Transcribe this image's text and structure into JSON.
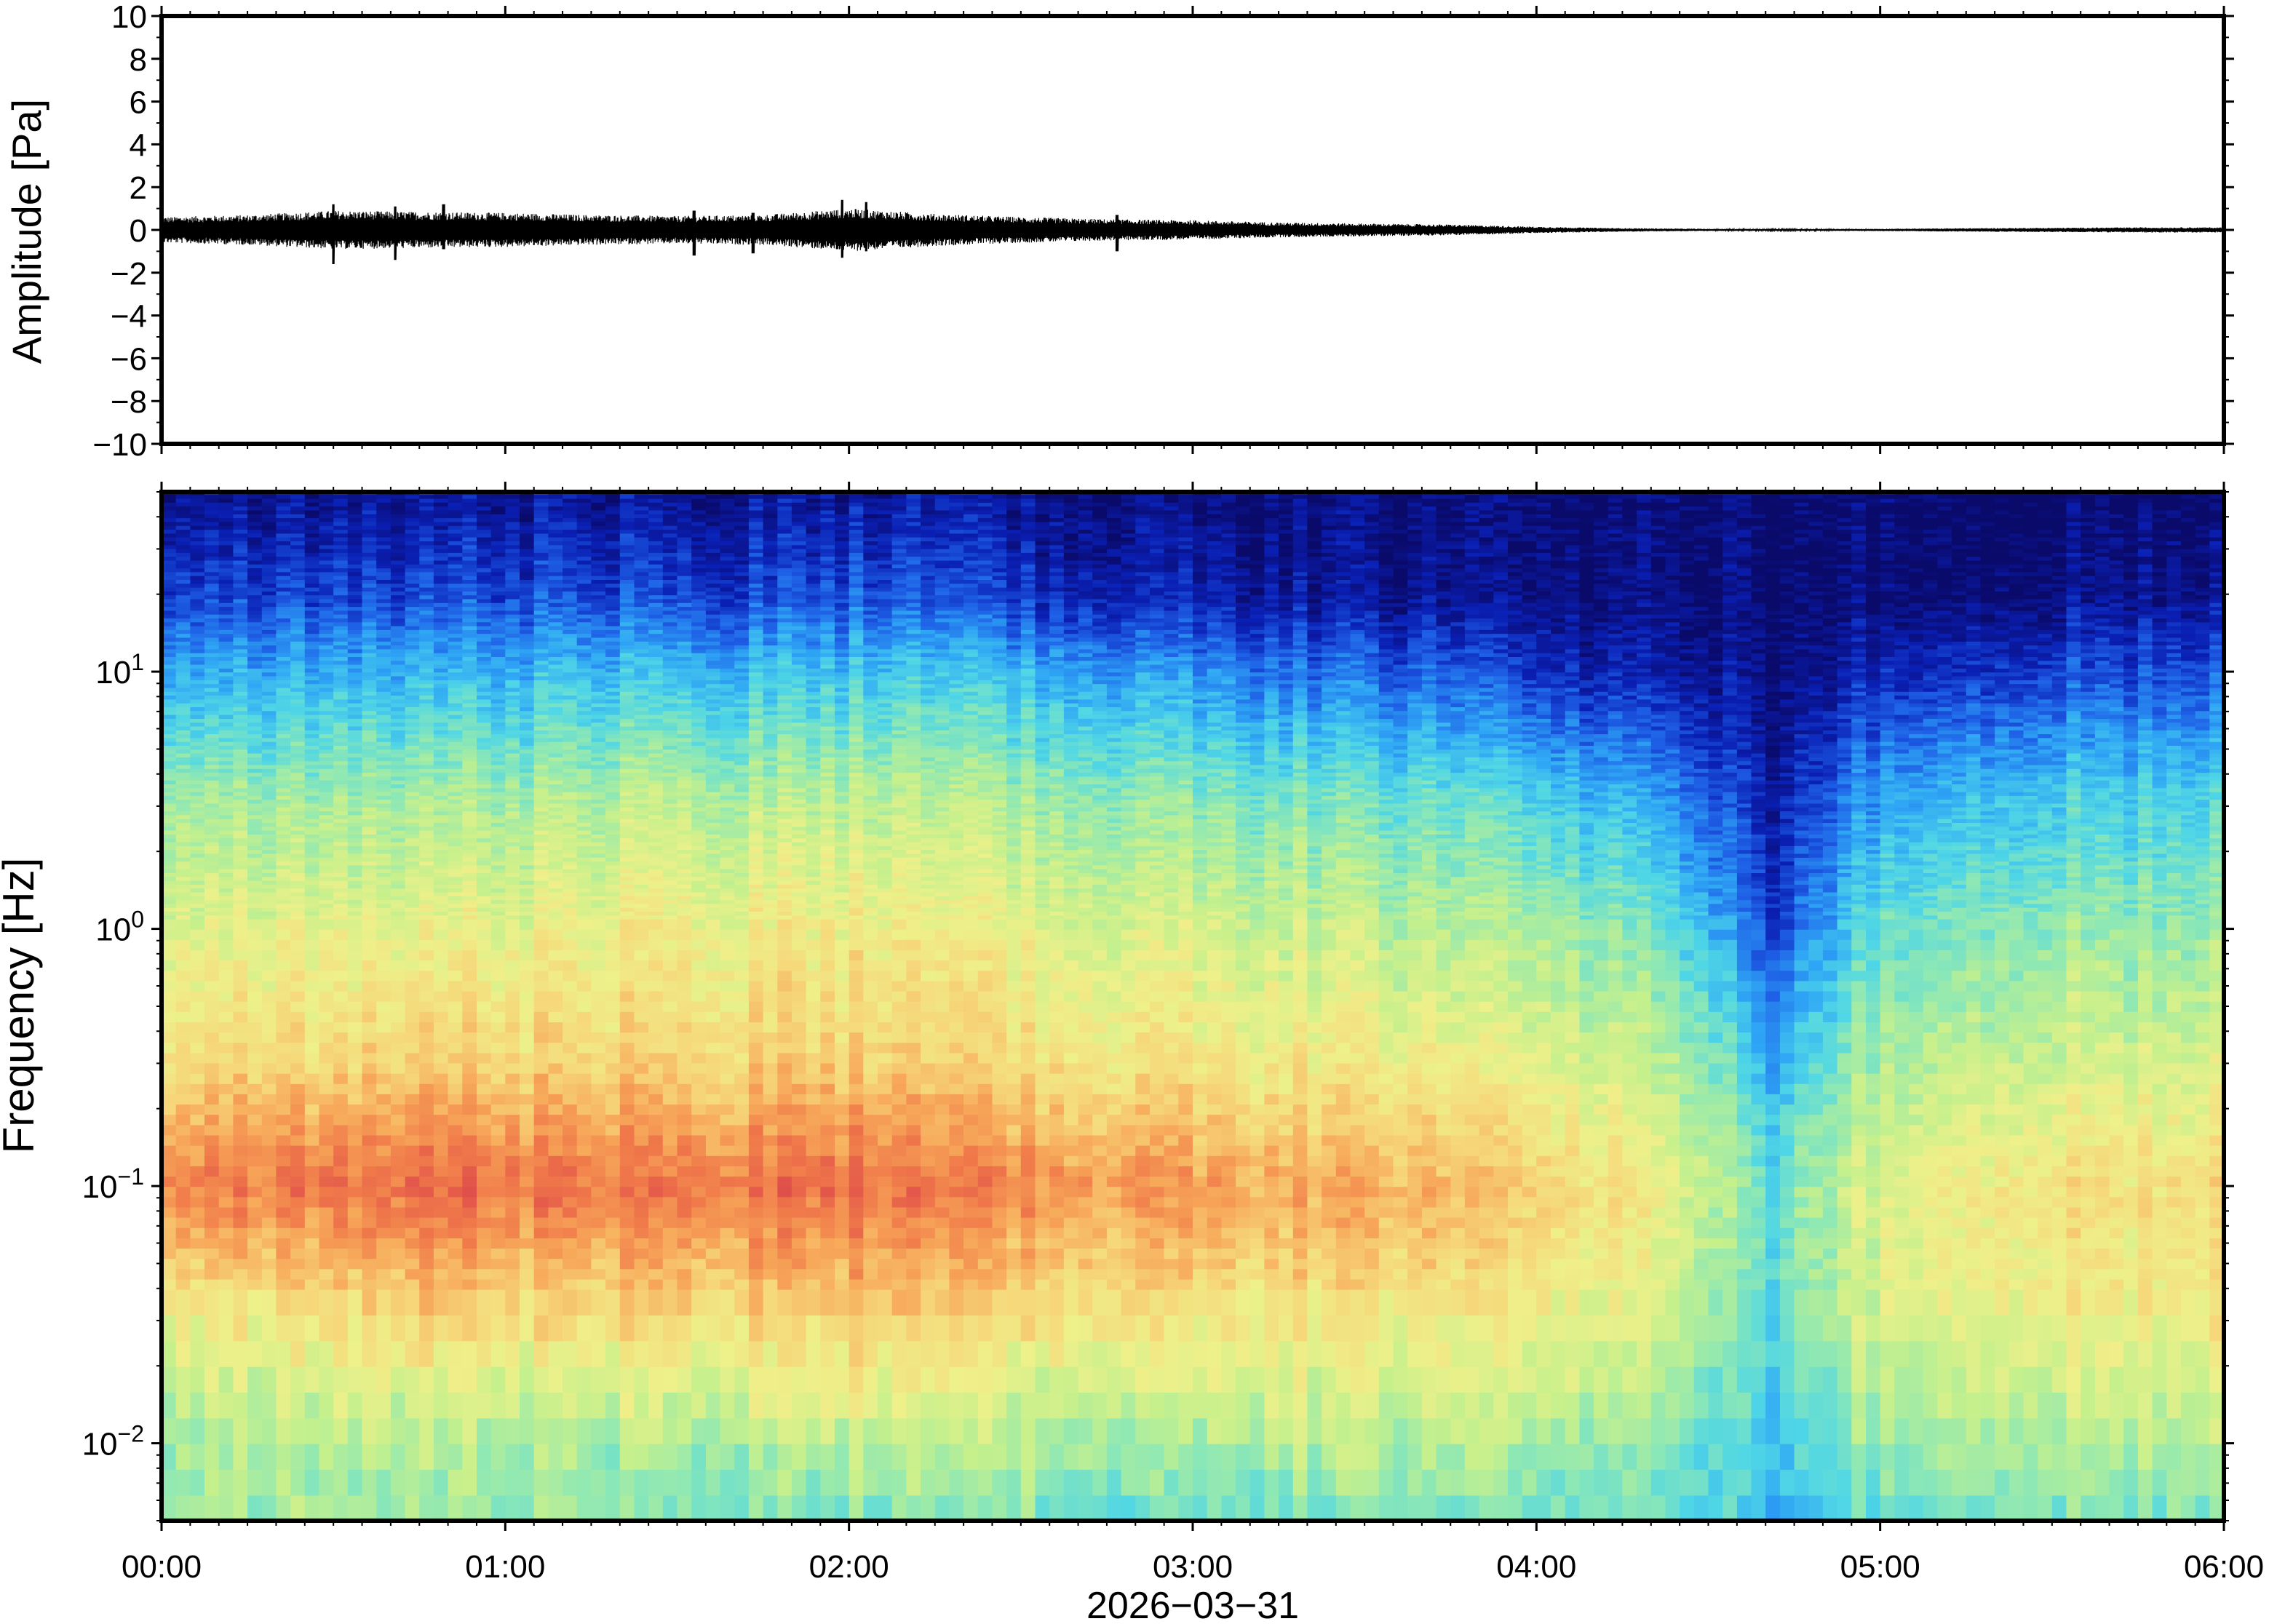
{
  "chart_data": [
    {
      "type": "line",
      "name": "waveform",
      "ylabel": "Amplitude [Pa]",
      "ylim": [
        -10,
        10
      ],
      "yticks": [
        10,
        8,
        6,
        4,
        2,
        0,
        -2,
        -4,
        -6,
        -8,
        -10
      ],
      "ytick_labels": [
        "10",
        "8",
        "6",
        "4",
        "2",
        "0",
        "−2",
        "−4",
        "−6",
        "−8",
        "−10"
      ],
      "xlim_hours": [
        0,
        6
      ],
      "envelope": {
        "t_hours": [
          0,
          0.25,
          0.5,
          0.75,
          1.0,
          1.25,
          1.5,
          1.75,
          2.0,
          2.25,
          2.5,
          2.75,
          3.0,
          3.25,
          3.5,
          3.75,
          4.0,
          4.25,
          4.5,
          4.75,
          5.0,
          5.25,
          5.5,
          5.75,
          6.0
        ],
        "amplitude_pa": [
          0.6,
          0.7,
          0.9,
          0.85,
          0.8,
          0.7,
          0.65,
          0.7,
          1.0,
          0.75,
          0.6,
          0.5,
          0.45,
          0.35,
          0.3,
          0.25,
          0.15,
          0.08,
          0.05,
          0.04,
          0.05,
          0.08,
          0.1,
          0.12,
          0.12
        ]
      },
      "peaks": [
        {
          "t_hours": 0.5,
          "max": 1.2,
          "min": -1.6
        },
        {
          "t_hours": 0.68,
          "max": 1.1,
          "min": -1.4
        },
        {
          "t_hours": 0.82,
          "max": 1.2,
          "min": -0.9
        },
        {
          "t_hours": 1.55,
          "max": 0.9,
          "min": -1.2
        },
        {
          "t_hours": 1.72,
          "max": 0.8,
          "min": -1.1
        },
        {
          "t_hours": 1.98,
          "max": 1.4,
          "min": -1.3
        },
        {
          "t_hours": 2.05,
          "max": 1.3,
          "min": -1.0
        },
        {
          "t_hours": 2.78,
          "max": 0.7,
          "min": -1.0
        }
      ]
    },
    {
      "type": "heatmap",
      "name": "spectrogram",
      "ylabel": "Frequency [Hz]",
      "yscale": "log",
      "ylim_hz": [
        0.005,
        50
      ],
      "yticks_hz": [
        10,
        1,
        0.1,
        0.01
      ],
      "ytick_labels": [
        {
          "base": "10",
          "exp": "1"
        },
        {
          "base": "10",
          "exp": "0"
        },
        {
          "base": "10",
          "exp": "−1"
        },
        {
          "base": "10",
          "exp": "−2"
        }
      ],
      "xlabel": "2026−03−31",
      "xtick_labels": [
        "00:00",
        "01:00",
        "02:00",
        "03:00",
        "04:00",
        "05:00",
        "06:00"
      ],
      "xlim_hours": [
        0,
        6
      ],
      "colormap": [
        "#0a0a6b",
        "#0a1fb4",
        "#1e5fe6",
        "#2fa6f5",
        "#4fd6e6",
        "#8ee8b4",
        "#c6f08c",
        "#eef08a",
        "#f6d77a",
        "#f7a95a",
        "#f07a4a",
        "#e0504a"
      ],
      "column_hours": [
        0.0,
        0.25,
        0.5,
        0.75,
        1.0,
        1.25,
        1.5,
        1.75,
        2.0,
        2.25,
        2.5,
        2.75,
        3.0,
        3.25,
        3.5,
        3.75,
        4.0,
        4.25,
        4.5,
        4.6,
        4.7,
        4.8,
        5.0,
        5.25,
        5.5,
        5.75,
        6.0
      ],
      "row_log10_hz": [
        -2.3,
        -2.0,
        -1.5,
        -1.0,
        -0.5,
        0.0,
        0.5,
        1.0,
        1.3,
        1.7
      ],
      "level_matrix": [
        [
          0.5,
          0.5,
          0.65,
          0.9,
          0.7,
          0.6,
          0.5,
          0.3,
          0.15,
          0.05
        ],
        [
          0.5,
          0.5,
          0.68,
          0.92,
          0.72,
          0.62,
          0.5,
          0.3,
          0.15,
          0.05
        ],
        [
          0.5,
          0.52,
          0.7,
          0.93,
          0.72,
          0.62,
          0.5,
          0.3,
          0.15,
          0.05
        ],
        [
          0.48,
          0.52,
          0.72,
          0.95,
          0.73,
          0.62,
          0.5,
          0.3,
          0.15,
          0.05
        ],
        [
          0.46,
          0.5,
          0.7,
          0.93,
          0.72,
          0.62,
          0.5,
          0.3,
          0.15,
          0.05
        ],
        [
          0.45,
          0.5,
          0.7,
          0.92,
          0.72,
          0.63,
          0.52,
          0.32,
          0.15,
          0.05
        ],
        [
          0.44,
          0.5,
          0.72,
          0.92,
          0.73,
          0.65,
          0.55,
          0.32,
          0.15,
          0.05
        ],
        [
          0.44,
          0.52,
          0.72,
          0.93,
          0.73,
          0.65,
          0.52,
          0.32,
          0.15,
          0.05
        ],
        [
          0.45,
          0.55,
          0.75,
          0.94,
          0.74,
          0.66,
          0.55,
          0.33,
          0.17,
          0.05
        ],
        [
          0.44,
          0.52,
          0.72,
          0.9,
          0.72,
          0.63,
          0.52,
          0.32,
          0.15,
          0.05
        ],
        [
          0.44,
          0.52,
          0.7,
          0.88,
          0.7,
          0.62,
          0.5,
          0.3,
          0.12,
          0.04
        ],
        [
          0.42,
          0.5,
          0.7,
          0.86,
          0.68,
          0.6,
          0.48,
          0.28,
          0.1,
          0.03
        ],
        [
          0.4,
          0.5,
          0.68,
          0.84,
          0.67,
          0.58,
          0.46,
          0.25,
          0.08,
          0.02
        ],
        [
          0.42,
          0.52,
          0.68,
          0.82,
          0.66,
          0.57,
          0.44,
          0.22,
          0.06,
          0.02
        ],
        [
          0.42,
          0.52,
          0.68,
          0.82,
          0.65,
          0.55,
          0.42,
          0.2,
          0.05,
          0.02
        ],
        [
          0.42,
          0.52,
          0.66,
          0.78,
          0.62,
          0.52,
          0.4,
          0.17,
          0.04,
          0.01
        ],
        [
          0.42,
          0.5,
          0.64,
          0.74,
          0.6,
          0.5,
          0.36,
          0.12,
          0.03,
          0.01
        ],
        [
          0.4,
          0.48,
          0.6,
          0.68,
          0.56,
          0.45,
          0.3,
          0.08,
          0.02,
          0.01
        ],
        [
          0.34,
          0.4,
          0.5,
          0.55,
          0.45,
          0.32,
          0.18,
          0.05,
          0.01,
          0.01
        ],
        [
          0.32,
          0.36,
          0.42,
          0.45,
          0.35,
          0.2,
          0.12,
          0.03,
          0.01,
          0.01
        ],
        [
          0.3,
          0.34,
          0.4,
          0.42,
          0.3,
          0.15,
          0.08,
          0.03,
          0.01,
          0.01
        ],
        [
          0.34,
          0.4,
          0.48,
          0.5,
          0.38,
          0.25,
          0.15,
          0.05,
          0.01,
          0.01
        ],
        [
          0.42,
          0.48,
          0.58,
          0.6,
          0.5,
          0.4,
          0.28,
          0.1,
          0.02,
          0.01
        ],
        [
          0.44,
          0.52,
          0.64,
          0.68,
          0.56,
          0.46,
          0.34,
          0.14,
          0.03,
          0.01
        ],
        [
          0.44,
          0.52,
          0.66,
          0.7,
          0.58,
          0.48,
          0.36,
          0.16,
          0.04,
          0.01
        ],
        [
          0.44,
          0.52,
          0.66,
          0.7,
          0.58,
          0.48,
          0.36,
          0.17,
          0.05,
          0.01
        ],
        [
          0.46,
          0.54,
          0.68,
          0.72,
          0.6,
          0.5,
          0.38,
          0.18,
          0.06,
          0.02
        ]
      ]
    }
  ]
}
